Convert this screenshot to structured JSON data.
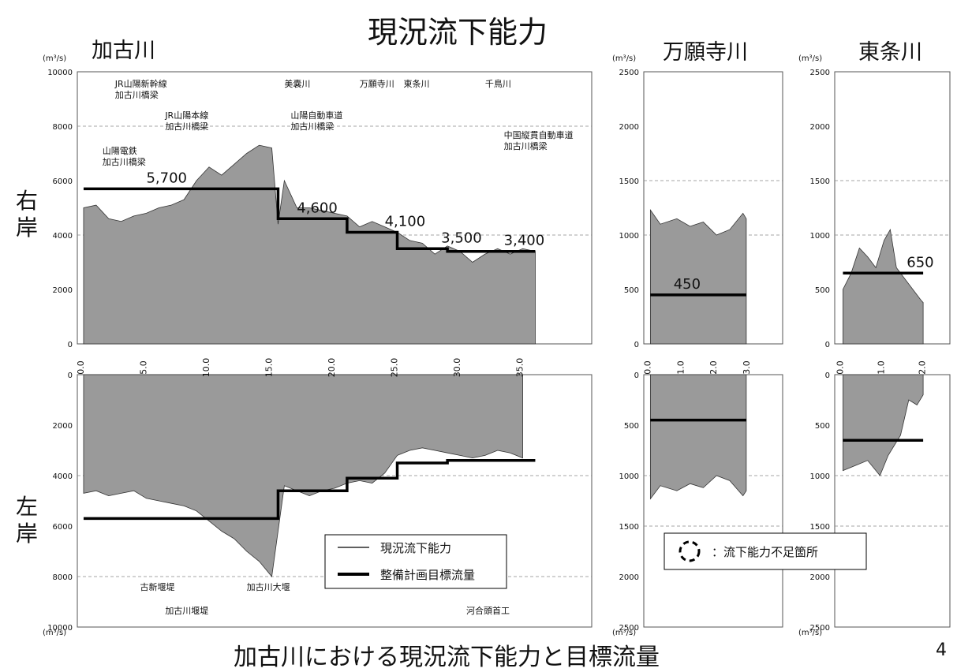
{
  "title": "現況流下能力",
  "subtitle": "加古川における現況流下能力と目標流量",
  "page_number": "4",
  "unit_label": "(m³/s)",
  "bank_labels": {
    "right": "右岸",
    "left": "左岸"
  },
  "colors": {
    "fill": "#9a9a9a",
    "fill_light": "#c4c4c4",
    "line": "#000000",
    "grid": "#888888"
  },
  "legend": {
    "current": "現況流下能力",
    "target": "整備計画目標流量",
    "circle": "：流下能力不足箇所"
  },
  "chart_data": [
    {
      "id": "kakogawa",
      "type": "area",
      "river": "加古川",
      "x_ticks": [
        "0.0",
        "5.0",
        "10.0",
        "15.0",
        "20.0",
        "25.0",
        "30.0",
        "35.0"
      ],
      "x_range": [
        -0.5,
        40.5
      ],
      "y_range": [
        0,
        10000
      ],
      "y_ticks": [
        "0",
        "2000",
        "4000",
        "6000",
        "8000",
        "10000"
      ],
      "right_bank": {
        "current": [
          [
            0,
            5000
          ],
          [
            1,
            5100
          ],
          [
            2,
            4600
          ],
          [
            3,
            4500
          ],
          [
            4,
            4700
          ],
          [
            5,
            4800
          ],
          [
            6,
            5000
          ],
          [
            7,
            5100
          ],
          [
            8,
            5300
          ],
          [
            9,
            6000
          ],
          [
            10,
            6500
          ],
          [
            11,
            6200
          ],
          [
            12,
            6600
          ],
          [
            13,
            7000
          ],
          [
            14,
            7300
          ],
          [
            15,
            7200
          ],
          [
            15.5,
            4400
          ],
          [
            16,
            6000
          ],
          [
            17,
            5000
          ],
          [
            18,
            5000
          ],
          [
            19,
            4900
          ],
          [
            20,
            4800
          ],
          [
            21,
            4700
          ],
          [
            22,
            4300
          ],
          [
            23,
            4500
          ],
          [
            24,
            4300
          ],
          [
            25,
            4100
          ],
          [
            26,
            3800
          ],
          [
            27,
            3700
          ],
          [
            28,
            3300
          ],
          [
            29,
            3600
          ],
          [
            30,
            3400
          ],
          [
            31,
            3000
          ],
          [
            32,
            3300
          ],
          [
            33,
            3500
          ],
          [
            34,
            3300
          ],
          [
            35,
            3500
          ],
          [
            36,
            3400
          ]
        ],
        "target": [
          [
            0,
            5700
          ],
          [
            15.5,
            5700
          ],
          [
            15.5,
            4600
          ],
          [
            21,
            4600
          ],
          [
            21,
            4100
          ],
          [
            25,
            4100
          ],
          [
            25,
            3500
          ],
          [
            29,
            3500
          ],
          [
            29,
            3400
          ],
          [
            36,
            3400
          ]
        ],
        "target_labels": [
          {
            "x": 5.0,
            "y": 5700,
            "text": "5,700"
          },
          {
            "x": 17.0,
            "y": 4600,
            "text": "4,600"
          },
          {
            "x": 24.0,
            "y": 4100,
            "text": "4,100"
          },
          {
            "x": 28.5,
            "y": 3500,
            "text": "3,500"
          },
          {
            "x": 33.5,
            "y": 3400,
            "text": "3,400"
          }
        ],
        "annotations": [
          {
            "text": "JR山陽新幹線\n加古川橋梁",
            "x": 2.5
          },
          {
            "text": "JR山陽本線\n加古川橋梁",
            "x": 6.5
          },
          {
            "text": "山陽電鉄\n加古川橋梁",
            "x": 1.5
          },
          {
            "text": "美嚢川",
            "x": 16.0
          },
          {
            "text": "山陽自動車道\n加古川橋梁",
            "x": 16.5
          },
          {
            "text": "万願寺川",
            "x": 22.0
          },
          {
            "text": "東条川",
            "x": 25.5
          },
          {
            "text": "千鳥川",
            "x": 32.0
          },
          {
            "text": "中国縦貫自動車道\n加古川橋梁",
            "x": 33.5
          }
        ]
      },
      "left_bank": {
        "current": [
          [
            0,
            4700
          ],
          [
            1,
            4600
          ],
          [
            2,
            4800
          ],
          [
            3,
            4700
          ],
          [
            4,
            4600
          ],
          [
            5,
            4900
          ],
          [
            6,
            5000
          ],
          [
            7,
            5100
          ],
          [
            8,
            5200
          ],
          [
            9,
            5400
          ],
          [
            10,
            5800
          ],
          [
            11,
            6200
          ],
          [
            12,
            6500
          ],
          [
            13,
            7000
          ],
          [
            14,
            7400
          ],
          [
            15,
            8000
          ],
          [
            16,
            4400
          ],
          [
            17,
            4600
          ],
          [
            18,
            4800
          ],
          [
            19,
            4600
          ],
          [
            20,
            4500
          ],
          [
            21,
            4300
          ],
          [
            22,
            4200
          ],
          [
            23,
            4300
          ],
          [
            24,
            3900
          ],
          [
            25,
            3200
          ],
          [
            26,
            3000
          ],
          [
            27,
            2900
          ],
          [
            28,
            3000
          ],
          [
            29,
            3100
          ],
          [
            30,
            3200
          ],
          [
            31,
            3300
          ],
          [
            32,
            3200
          ],
          [
            33,
            3000
          ],
          [
            34,
            3100
          ],
          [
            35,
            3300
          ]
        ],
        "target": [
          [
            0,
            5700
          ],
          [
            15.5,
            5700
          ],
          [
            15.5,
            4600
          ],
          [
            21,
            4600
          ],
          [
            21,
            4100
          ],
          [
            25,
            4100
          ],
          [
            25,
            3500
          ],
          [
            29,
            3500
          ],
          [
            29,
            3400
          ],
          [
            36,
            3400
          ]
        ],
        "annotations": [
          {
            "text": "古新堰堤",
            "x": 4.5
          },
          {
            "text": "加古川堰堤",
            "x": 6.5
          },
          {
            "text": "加古川大堰",
            "x": 13.0
          },
          {
            "text": "河合頭首工",
            "x": 30.5
          }
        ]
      }
    },
    {
      "id": "manganji",
      "type": "area",
      "river": "万願寺川",
      "x_ticks": [
        "0.0",
        "1.0",
        "2.0",
        "3.0"
      ],
      "x_range": [
        -0.2,
        4.0
      ],
      "y_range": [
        0,
        2500
      ],
      "y_ticks": [
        "0",
        "500",
        "1000",
        "1500",
        "2000",
        "2500"
      ],
      "right_bank": {
        "current": [
          [
            0,
            1230
          ],
          [
            0.3,
            1100
          ],
          [
            0.8,
            1150
          ],
          [
            1.2,
            1080
          ],
          [
            1.6,
            1120
          ],
          [
            2.0,
            1000
          ],
          [
            2.4,
            1050
          ],
          [
            2.8,
            1200
          ],
          [
            2.9,
            1150
          ]
        ],
        "target": [
          [
            0,
            450
          ],
          [
            2.9,
            450
          ]
        ],
        "target_labels": [
          {
            "x": 0.7,
            "y": 450,
            "text": "450"
          }
        ]
      },
      "left_bank": {
        "current": [
          [
            0,
            1230
          ],
          [
            0.3,
            1100
          ],
          [
            0.8,
            1150
          ],
          [
            1.2,
            1080
          ],
          [
            1.6,
            1120
          ],
          [
            2.0,
            1000
          ],
          [
            2.4,
            1050
          ],
          [
            2.8,
            1200
          ],
          [
            2.9,
            1150
          ]
        ],
        "target": [
          [
            0,
            450
          ],
          [
            2.9,
            450
          ]
        ]
      }
    },
    {
      "id": "tojo",
      "type": "area",
      "river": "東条川",
      "x_ticks": [
        "0.0",
        "1.0",
        "2.0"
      ],
      "x_range": [
        -0.2,
        2.6
      ],
      "y_range": [
        0,
        2500
      ],
      "y_ticks": [
        "0",
        "500",
        "1000",
        "1500",
        "2000",
        "2500"
      ],
      "right_bank": {
        "current": [
          [
            0,
            500
          ],
          [
            0.2,
            650
          ],
          [
            0.4,
            880
          ],
          [
            0.6,
            800
          ],
          [
            0.8,
            700
          ],
          [
            1.0,
            950
          ],
          [
            1.15,
            1050
          ],
          [
            1.3,
            700
          ],
          [
            1.5,
            600
          ],
          [
            1.7,
            500
          ],
          [
            1.9,
            400
          ],
          [
            1.95,
            380
          ]
        ],
        "target": [
          [
            0,
            650
          ],
          [
            1.95,
            650
          ]
        ],
        "target_labels": [
          {
            "x": 1.55,
            "y": 650,
            "text": "650"
          }
        ]
      },
      "left_bank": {
        "current": [
          [
            0,
            950
          ],
          [
            0.3,
            900
          ],
          [
            0.6,
            850
          ],
          [
            0.9,
            1000
          ],
          [
            1.1,
            800
          ],
          [
            1.4,
            600
          ],
          [
            1.6,
            250
          ],
          [
            1.8,
            300
          ],
          [
            1.95,
            200
          ]
        ],
        "target": [
          [
            0,
            650
          ],
          [
            1.95,
            650
          ]
        ]
      }
    }
  ]
}
